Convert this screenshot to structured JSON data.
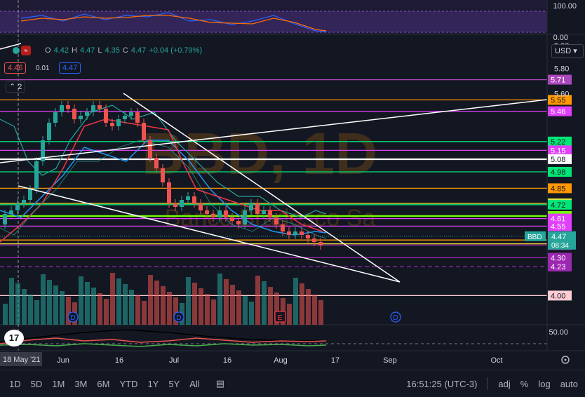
{
  "osc_top": {
    "label_100": "100.00",
    "label_0": "0.00"
  },
  "legend": {
    "open_label": "O",
    "open": "4.42",
    "high_label": "H",
    "high": "4.47",
    "low_label": "L",
    "low": "4.35",
    "close_label": "C",
    "close": "4.47",
    "change": "+0.04 (+0.79%)"
  },
  "bid": "4.46",
  "spread": "0.01",
  "ask": "4.47",
  "indicator_count": "2",
  "currency": "USD",
  "watermark": {
    "symbol": "BBD, 1D",
    "name": "Banco Bradesco Sa"
  },
  "price_axis": {
    "ticks": [
      "5.98",
      "5.80",
      "5.60"
    ]
  },
  "levels": [
    {
      "v": "5.71",
      "c": "#ab47bc"
    },
    {
      "v": "5.55",
      "c": "#ff9800"
    },
    {
      "v": "5.46",
      "c": "#e040fb"
    },
    {
      "v": "5.22",
      "c": "#00e676"
    },
    {
      "v": "5.15",
      "c": "#e040fb"
    },
    {
      "v": "5.08",
      "c": "#ffffff"
    },
    {
      "v": "4.98",
      "c": "#00e676"
    },
    {
      "v": "4.85",
      "c": "#ff9800"
    },
    {
      "v": "4.73",
      "c": "#ffeb3b"
    },
    {
      "v": "4.72",
      "c": "#00e676"
    },
    {
      "v": "4.63",
      "c": "#76ff03"
    },
    {
      "v": "4.61",
      "c": "#e040fb"
    },
    {
      "v": "4.55",
      "c": "#e040fb"
    },
    {
      "v": "4.44",
      "c": "#ff9800"
    },
    {
      "v": "4.41",
      "c": "#ffeb3b"
    },
    {
      "v": "4.40",
      "c": "#9c27b0"
    },
    {
      "v": "4.30",
      "c": "#9c27b0"
    },
    {
      "v": "4.23",
      "c": "#9c27b0"
    },
    {
      "v": "4.00",
      "c": "#ffcdd2"
    }
  ],
  "last_price": {
    "symbol": "BBD",
    "price": "4.47",
    "countdown": "08:34"
  },
  "osc_bottom": {
    "label_50": "50.00"
  },
  "time_axis": {
    "selected": "18 May '21",
    "labels": [
      "Jun",
      "16",
      "Jul",
      "16",
      "Aug",
      "17",
      "Sep",
      "Oct"
    ]
  },
  "events": {
    "dividend": "D",
    "earnings": "E"
  },
  "toolbar": {
    "ranges": [
      "1D",
      "5D",
      "1M",
      "3M",
      "6M",
      "YTD",
      "1Y",
      "5Y",
      "All"
    ],
    "clock": "16:51:25 (UTC-3)",
    "adj": "adj",
    "percent": "%",
    "log": "log",
    "auto": "auto"
  },
  "colors": {
    "bg": "#131722",
    "up": "#26a69a",
    "down": "#ef5350",
    "grid": "#1e222d"
  }
}
